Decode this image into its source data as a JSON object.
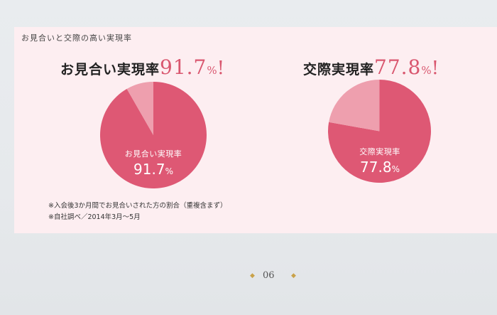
{
  "section_title": "お見合いと交際の高い実現率",
  "headlines": [
    {
      "label": "お見合い実現率",
      "percent": "91.7",
      "unit": "%",
      "exclaim": "!"
    },
    {
      "label": "交際実現率",
      "percent": "77.8",
      "unit": "%",
      "exclaim": "!"
    }
  ],
  "pies": [
    {
      "name": "お見合い実現率",
      "value_text": "91.7",
      "unit": "%"
    },
    {
      "name": "交際実現率",
      "value_text": "77.8",
      "unit": "%"
    }
  ],
  "notes": [
    "※入会後3か月間でお見合いされた方の割合（重複含まず）",
    "※自社調べ／2014年3月〜5月"
  ],
  "page_number": "06",
  "ornament": "◆",
  "colors": {
    "main_slice": "#de5874",
    "rest_slice": "#ee9fae",
    "accent_text": "#d9576f"
  },
  "chart_data": [
    {
      "type": "pie",
      "title": "お見合い実現率",
      "slices": [
        {
          "label": "お見合い実現率",
          "value": 91.7
        },
        {
          "label": "",
          "value": 8.3
        }
      ]
    },
    {
      "type": "pie",
      "title": "交際実現率",
      "slices": [
        {
          "label": "交際実現率",
          "value": 77.8
        },
        {
          "label": "",
          "value": 22.2
        }
      ]
    }
  ]
}
